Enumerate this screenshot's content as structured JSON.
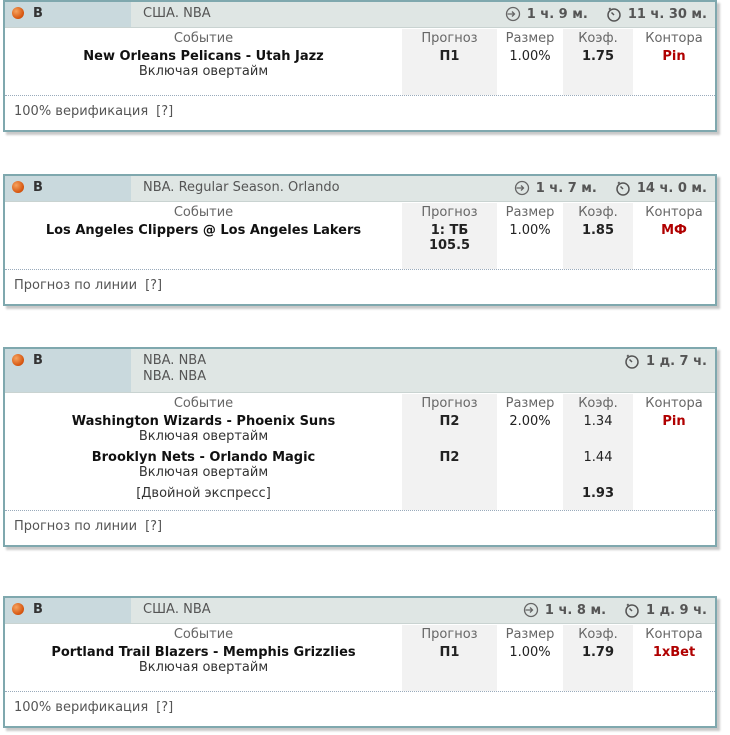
{
  "headers": {
    "event": "Событие",
    "forecast": "Прогноз",
    "size": "Размер",
    "coef": "Коэф.",
    "bookmaker": "Контора"
  },
  "cards": [
    {
      "sport_letter": "B",
      "league": [
        "США. NBA"
      ],
      "timer_left": "1 ч. 9 м.",
      "timer_right": "11 ч. 30 м.",
      "events": [
        {
          "match": "New Orleans Pelicans - Utah Jazz",
          "sub": "Включая овертайм",
          "forecast": "П1",
          "size": "1.00%",
          "coef": "1.75",
          "bookmaker": "Pin"
        }
      ],
      "footer": "100% верификация",
      "footer_help": "[?]"
    },
    {
      "sport_letter": "B",
      "league": [
        "NBA. Regular Season. Orlando"
      ],
      "timer_left": "1 ч. 7 м.",
      "timer_right": "14 ч. 0 м.",
      "events": [
        {
          "match": "Los Angeles Clippers @ Los Angeles Lakers",
          "sub": "",
          "forecast": "1: ТБ",
          "forecast2": "105.5",
          "size": "1.00%",
          "coef": "1.85",
          "bookmaker": "МФ"
        }
      ],
      "footer": "Прогноз по линии",
      "footer_help": "[?]"
    },
    {
      "sport_letter": "B",
      "league": [
        "NBA. NBA",
        "NBA. NBA"
      ],
      "timer_right": "1 д. 7 ч.",
      "events": [
        {
          "match": "Washington Wizards - Phoenix Suns",
          "sub": "Включая овертайм",
          "forecast": "П2",
          "size": "2.00%",
          "coef": "1.34",
          "bookmaker": "Pin"
        },
        {
          "match": "Brooklyn Nets - Orlando Magic",
          "sub": "Включая овертайм",
          "forecast": "П2",
          "coef": "1.44"
        }
      ],
      "express_label": "[Двойной экспресс]",
      "express_coef": "1.93",
      "footer": "Прогноз по линии",
      "footer_help": "[?]"
    },
    {
      "sport_letter": "B",
      "league": [
        "США. NBA"
      ],
      "timer_left": "1 ч. 8 м.",
      "timer_right": "1 д. 9 ч.",
      "events": [
        {
          "match": "Portland Trail Blazers - Memphis Grizzlies",
          "sub": "Включая овертайм",
          "forecast": "П1",
          "size": "1.00%",
          "coef": "1.79",
          "bookmaker": "1xBet"
        }
      ],
      "footer": "100% верификация",
      "footer_help": "[?]"
    }
  ],
  "colors": {
    "border": "#7fa8ae",
    "header_bg": "#dfe6e4",
    "accent_red": "#b00000",
    "ball": "#d5530c"
  }
}
